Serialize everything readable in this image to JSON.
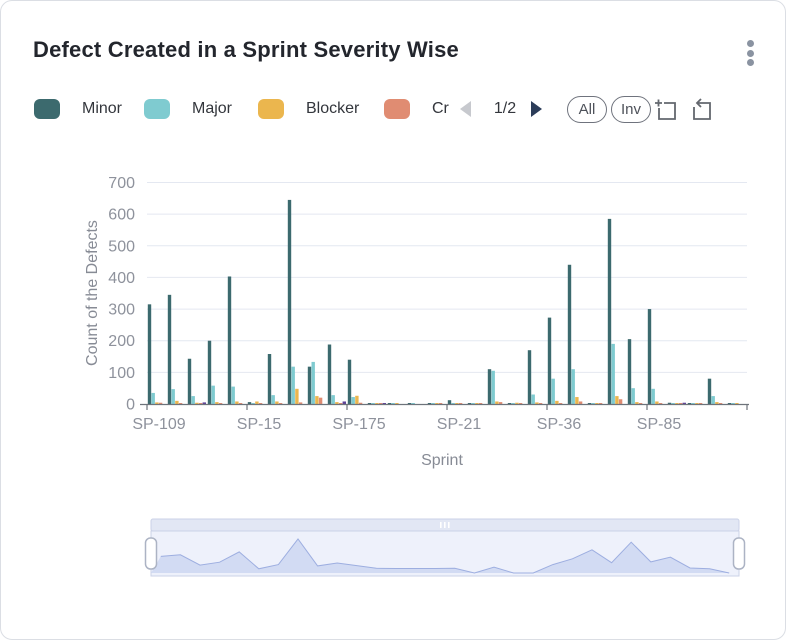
{
  "header": {
    "title": "Defect Created in a Sprint Severity Wise",
    "menu_icon": "kebab-menu-icon"
  },
  "legend": {
    "items": [
      {
        "label": "Minor",
        "color": "#3C6A6E"
      },
      {
        "label": "Major",
        "color": "#7FCBD0"
      },
      {
        "label": "Blocker",
        "color": "#EBB64E"
      },
      {
        "label": "Cr",
        "color": "#E08C72"
      }
    ],
    "pager": {
      "page": "1/2",
      "prev_enabled": false,
      "next_enabled": true
    },
    "buttons": {
      "all": "All",
      "inverse": "Inv"
    },
    "tool_icons": [
      "zoom-select-icon",
      "restore-zoom-icon"
    ]
  },
  "chart_data": {
    "type": "bar",
    "title": "Defect Created in a Sprint Severity Wise",
    "xlabel": "Sprint",
    "ylabel": "Count of the Defects",
    "ylim": [
      0,
      700
    ],
    "y_ticks": [
      0,
      100,
      200,
      300,
      400,
      500,
      600,
      700
    ],
    "grid": true,
    "legend_position": "top",
    "categories_count": 30,
    "x_tick_labels": [
      "SP-109",
      "SP-15",
      "SP-175",
      "SP-21",
      "SP-36",
      "SP-85"
    ],
    "x_label_every": 5,
    "series": [
      {
        "name": "Minor",
        "color": "#3C6A6E",
        "values": [
          315,
          345,
          143,
          200,
          403,
          6,
          158,
          645,
          118,
          188,
          140,
          3,
          3,
          2,
          3,
          12,
          3,
          110,
          3,
          170,
          273,
          440,
          3,
          585,
          205,
          300,
          4,
          3,
          80,
          2
        ]
      },
      {
        "name": "Major",
        "color": "#7FCBD0",
        "values": [
          35,
          47,
          25,
          58,
          55,
          3,
          28,
          118,
          133,
          28,
          22,
          2,
          2,
          2,
          2,
          3,
          2,
          105,
          2,
          30,
          80,
          110,
          2,
          190,
          50,
          48,
          2,
          2,
          25,
          2
        ]
      },
      {
        "name": "Blocker",
        "color": "#EBB64E",
        "values": [
          5,
          10,
          4,
          6,
          8,
          8,
          8,
          48,
          25,
          6,
          26,
          2,
          2,
          0,
          3,
          2,
          3,
          8,
          4,
          5,
          10,
          22,
          3,
          25,
          6,
          8,
          3,
          2,
          6,
          2
        ]
      },
      {
        "name": "Cr",
        "color": "#E08C72",
        "values": [
          4,
          3,
          2,
          2,
          3,
          2,
          3,
          5,
          20,
          3,
          4,
          2,
          0,
          0,
          2,
          2,
          3,
          6,
          2,
          3,
          3,
          8,
          2,
          15,
          3,
          3,
          2,
          2,
          2,
          0
        ]
      },
      {
        "name": "",
        "color": "#5F4297",
        "values": [
          0,
          0,
          5,
          0,
          0,
          0,
          0,
          0,
          0,
          8,
          0,
          2,
          0,
          0,
          0,
          0,
          0,
          0,
          0,
          0,
          0,
          0,
          0,
          0,
          0,
          0,
          4,
          0,
          0,
          0
        ]
      }
    ],
    "minimap_profile": [
      315,
      345,
      150,
      205,
      400,
      80,
      160,
      645,
      135,
      190,
      140,
      90,
      85,
      85,
      85,
      90,
      0,
      110,
      0,
      0,
      160,
      270,
      440,
      195,
      585,
      210,
      300,
      95,
      80,
      0
    ],
    "zoom_window_percent": [
      0,
      100
    ]
  }
}
